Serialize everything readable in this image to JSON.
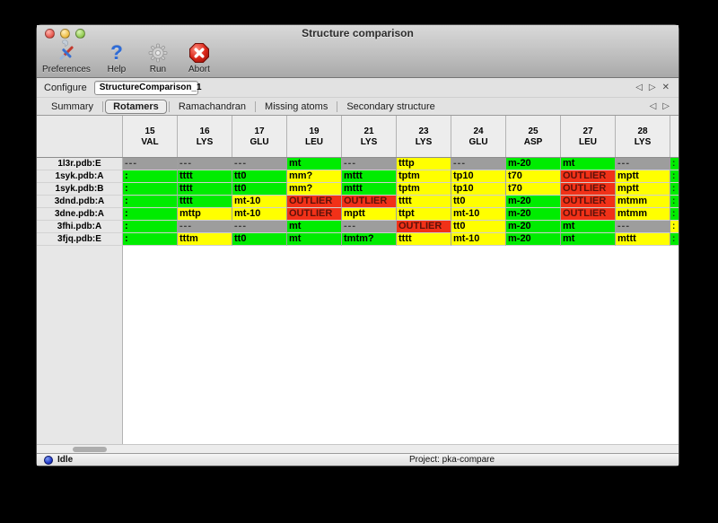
{
  "window": {
    "title": "Structure comparison"
  },
  "toolbar": {
    "buttons": [
      {
        "label": "Preferences",
        "icon": "tools-icon"
      },
      {
        "label": "Help",
        "icon": "question-icon"
      },
      {
        "label": "Run",
        "icon": "gear-icon"
      },
      {
        "label": "Abort",
        "icon": "abort-icon"
      }
    ]
  },
  "configure": {
    "label": "Configure",
    "value": "StructureComparison_1",
    "nav": {
      "prev": "◁",
      "next": "▷",
      "close": "✕"
    }
  },
  "tabs": {
    "items": [
      {
        "label": "Summary",
        "selected": false
      },
      {
        "label": "Rotamers",
        "selected": true
      },
      {
        "label": "Ramachandran",
        "selected": false
      },
      {
        "label": "Missing atoms",
        "selected": false
      },
      {
        "label": "Secondary structure",
        "selected": false
      }
    ],
    "nav": {
      "prev": "◁",
      "next": "▷"
    }
  },
  "cell_colors": {
    "green": "#00ec00",
    "yellow": "#ffff00",
    "red": "#f13118",
    "gray": "#9d9d9d"
  },
  "table": {
    "columns": [
      {
        "num": "15",
        "res": "VAL"
      },
      {
        "num": "16",
        "res": "LYS"
      },
      {
        "num": "17",
        "res": "GLU"
      },
      {
        "num": "19",
        "res": "LEU"
      },
      {
        "num": "21",
        "res": "LYS"
      },
      {
        "num": "23",
        "res": "LYS"
      },
      {
        "num": "24",
        "res": "GLU"
      },
      {
        "num": "25",
        "res": "ASP"
      },
      {
        "num": "27",
        "res": "LEU"
      },
      {
        "num": "28",
        "res": "LYS"
      }
    ],
    "rows": [
      {
        "label": "1l3r.pdb:E",
        "overflow_color": "green",
        "cells": [
          {
            "value": "---",
            "color": "gray"
          },
          {
            "value": "---",
            "color": "gray"
          },
          {
            "value": "---",
            "color": "gray"
          },
          {
            "value": "mt",
            "color": "green"
          },
          {
            "value": "---",
            "color": "gray"
          },
          {
            "value": "tttp",
            "color": "yellow"
          },
          {
            "value": "---",
            "color": "gray"
          },
          {
            "value": "m-20",
            "color": "green"
          },
          {
            "value": "mt",
            "color": "green"
          },
          {
            "value": "---",
            "color": "gray"
          }
        ]
      },
      {
        "label": "1syk.pdb:A",
        "overflow_color": "green",
        "cells": [
          {
            "value": ":",
            "color": "green"
          },
          {
            "value": "tttt",
            "color": "green"
          },
          {
            "value": "tt0",
            "color": "green"
          },
          {
            "value": "mm?",
            "color": "yellow"
          },
          {
            "value": "mttt",
            "color": "green"
          },
          {
            "value": "tptm",
            "color": "yellow"
          },
          {
            "value": "tp10",
            "color": "yellow"
          },
          {
            "value": "t70",
            "color": "yellow"
          },
          {
            "value": "OUTLIER",
            "color": "red"
          },
          {
            "value": "mptt",
            "color": "yellow"
          }
        ]
      },
      {
        "label": "1syk.pdb:B",
        "overflow_color": "green",
        "cells": [
          {
            "value": ":",
            "color": "green"
          },
          {
            "value": "tttt",
            "color": "green"
          },
          {
            "value": "tt0",
            "color": "green"
          },
          {
            "value": "mm?",
            "color": "yellow"
          },
          {
            "value": "mttt",
            "color": "green"
          },
          {
            "value": "tptm",
            "color": "yellow"
          },
          {
            "value": "tp10",
            "color": "yellow"
          },
          {
            "value": "t70",
            "color": "yellow"
          },
          {
            "value": "OUTLIER",
            "color": "red"
          },
          {
            "value": "mptt",
            "color": "yellow"
          }
        ]
      },
      {
        "label": "3dnd.pdb:A",
        "overflow_color": "green",
        "cells": [
          {
            "value": ":",
            "color": "green"
          },
          {
            "value": "tttt",
            "color": "green"
          },
          {
            "value": "mt-10",
            "color": "yellow"
          },
          {
            "value": "OUTLIER",
            "color": "red"
          },
          {
            "value": "OUTLIER",
            "color": "red"
          },
          {
            "value": "tttt",
            "color": "yellow"
          },
          {
            "value": "tt0",
            "color": "yellow"
          },
          {
            "value": "m-20",
            "color": "green"
          },
          {
            "value": "OUTLIER",
            "color": "red"
          },
          {
            "value": "mtmm",
            "color": "yellow"
          }
        ]
      },
      {
        "label": "3dne.pdb:A",
        "overflow_color": "green",
        "cells": [
          {
            "value": ":",
            "color": "green"
          },
          {
            "value": "mttp",
            "color": "yellow"
          },
          {
            "value": "mt-10",
            "color": "yellow"
          },
          {
            "value": "OUTLIER",
            "color": "red"
          },
          {
            "value": "mptt",
            "color": "yellow"
          },
          {
            "value": "ttpt",
            "color": "yellow"
          },
          {
            "value": "mt-10",
            "color": "yellow"
          },
          {
            "value": "m-20",
            "color": "green"
          },
          {
            "value": "OUTLIER",
            "color": "red"
          },
          {
            "value": "mtmm",
            "color": "yellow"
          }
        ]
      },
      {
        "label": "3fhi.pdb:A",
        "overflow_color": "yellow",
        "cells": [
          {
            "value": ":",
            "color": "green"
          },
          {
            "value": "---",
            "color": "gray"
          },
          {
            "value": "---",
            "color": "gray"
          },
          {
            "value": "mt",
            "color": "green"
          },
          {
            "value": "---",
            "color": "gray"
          },
          {
            "value": "OUTLIER",
            "color": "red"
          },
          {
            "value": "tt0",
            "color": "yellow"
          },
          {
            "value": "m-20",
            "color": "green"
          },
          {
            "value": "mt",
            "color": "green"
          },
          {
            "value": "---",
            "color": "gray"
          }
        ]
      },
      {
        "label": "3fjq.pdb:E",
        "overflow_color": "green",
        "cells": [
          {
            "value": ":",
            "color": "green"
          },
          {
            "value": "tttm",
            "color": "yellow"
          },
          {
            "value": "tt0",
            "color": "green"
          },
          {
            "value": "mt",
            "color": "green"
          },
          {
            "value": "tmtm?",
            "color": "green"
          },
          {
            "value": "tttt",
            "color": "yellow"
          },
          {
            "value": "mt-10",
            "color": "yellow"
          },
          {
            "value": "m-20",
            "color": "green"
          },
          {
            "value": "mt",
            "color": "green"
          },
          {
            "value": "mttt",
            "color": "yellow"
          }
        ]
      }
    ]
  },
  "statusbar": {
    "status": "Idle",
    "project": "Project: pka-compare"
  }
}
